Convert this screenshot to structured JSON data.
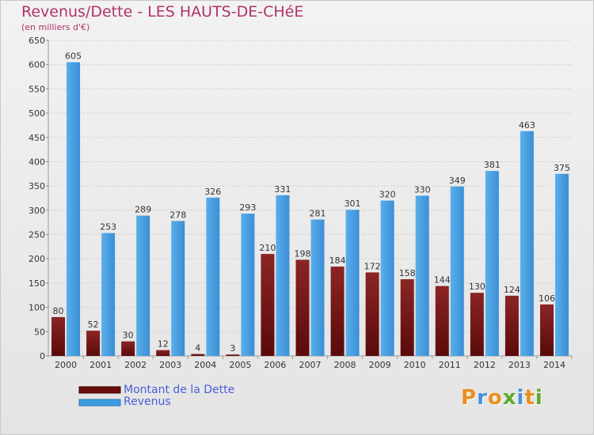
{
  "header": {
    "title": "Revenus/Dette - LES HAUTS-DE-CHéE",
    "unit": "(en milliers d'€)"
  },
  "chart_data": {
    "type": "bar",
    "categories": [
      "2000",
      "2001",
      "2002",
      "2003",
      "2004",
      "2005",
      "2006",
      "2007",
      "2008",
      "2009",
      "2010",
      "2011",
      "2012",
      "2013",
      "2014"
    ],
    "series": [
      {
        "name": "Montant de la Dette",
        "color": "#8b1a1a",
        "values": [
          80,
          52,
          30,
          12,
          4,
          3,
          210,
          198,
          184,
          172,
          158,
          144,
          130,
          124,
          106
        ]
      },
      {
        "name": "Revenus",
        "color": "#3c9ae0",
        "values": [
          605,
          253,
          289,
          278,
          326,
          293,
          331,
          281,
          301,
          320,
          330,
          349,
          381,
          463,
          375
        ]
      }
    ],
    "ylim": [
      0,
      650
    ],
    "ytick_step": 50,
    "grid": true
  },
  "legend": {
    "items": [
      {
        "label": "Montant de la Dette",
        "color": "#6b0c0c"
      },
      {
        "label": "Revenus",
        "color": "#3c9ae0"
      }
    ]
  },
  "brand": {
    "logo_text": "Proxiti",
    "letter_colors": [
      "#e8901e",
      "#4a8fd8",
      "#e8901e",
      "#5aaa2a",
      "#4a8fd8",
      "#e8901e",
      "#5aaa2a"
    ]
  }
}
